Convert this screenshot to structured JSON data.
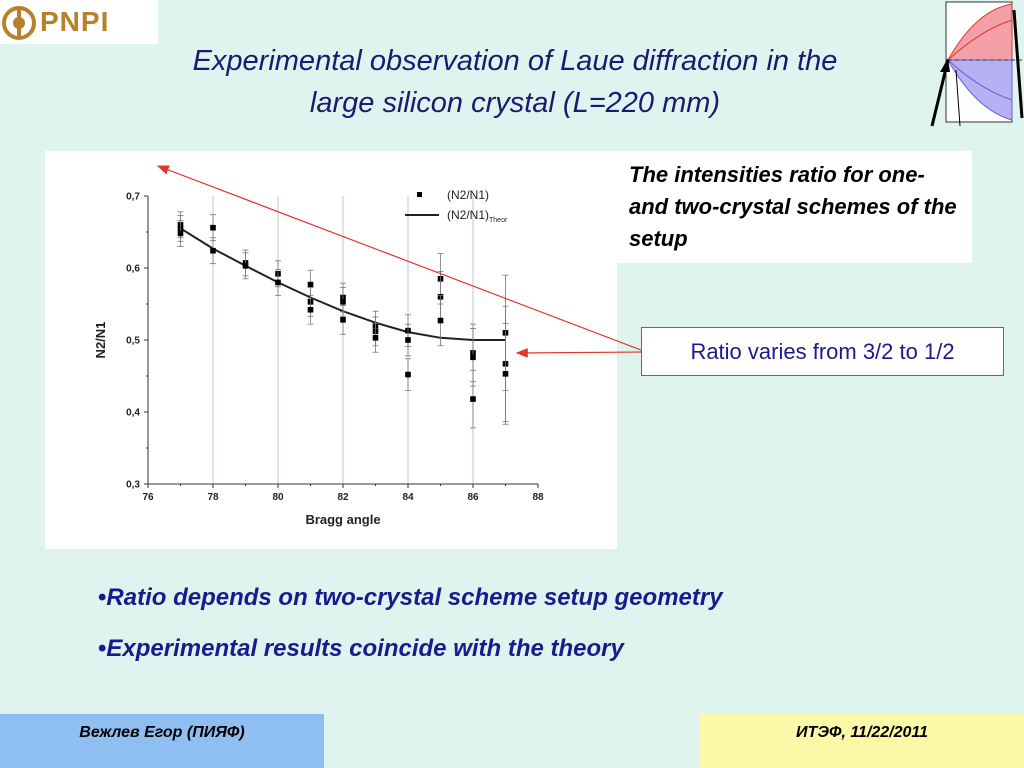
{
  "logo": {
    "text": "PNPI",
    "color": "#b7802a"
  },
  "title": {
    "line1": "Experimental observation of Laue diffraction in the",
    "line2": "large silicon crystal (L=220 mm)"
  },
  "caption": {
    "text": "The intensities ratio for one- and two-crystal schemes of the setup"
  },
  "ratio_box": {
    "text": "Ratio varies from 3/2 to 1/2"
  },
  "bullets": [
    "Ratio depends on two-crystal scheme setup geometry",
    "Experimental results coincide with the theory"
  ],
  "footer": {
    "left": "Вежлев Егор (ПИЯФ)",
    "right": "ИТЭФ, 11/22/2011"
  },
  "colors": {
    "background": "#dff4ee",
    "title_text": "#1a1a70",
    "accent_red": "#e0362b",
    "bullet_text": "#1a1a8c",
    "footer_left": "#8fbff1",
    "footer_right": "#fbf8a8"
  },
  "chart_data": {
    "type": "scatter",
    "title": "",
    "xlabel": "Bragg angle",
    "ylabel": "N2/N1",
    "xlim": [
      76,
      88
    ],
    "ylim": [
      0.3,
      0.7
    ],
    "x_ticks": [
      "76",
      "78",
      "80",
      "82",
      "84",
      "86",
      "88"
    ],
    "y_ticks": [
      "0,3",
      "0,4",
      "0,5",
      "0,6",
      "0,7"
    ],
    "vertical_gridlines_at": [
      78,
      80,
      82,
      84,
      86
    ],
    "legend": {
      "position": "top-right",
      "entries": [
        {
          "label": "(N2/N1)",
          "subscript": "",
          "marker": "square"
        },
        {
          "label": "(N2/N1)",
          "subscript": "Theor",
          "marker": "line"
        }
      ]
    },
    "series": [
      {
        "name": "(N2/N1)",
        "kind": "points",
        "points": [
          {
            "x": 77,
            "y": 0.66,
            "err": 0.018
          },
          {
            "x": 77,
            "y": 0.655,
            "err": 0.018
          },
          {
            "x": 77,
            "y": 0.648,
            "err": 0.018
          },
          {
            "x": 78,
            "y": 0.656,
            "err": 0.018
          },
          {
            "x": 78,
            "y": 0.624,
            "err": 0.018
          },
          {
            "x": 79,
            "y": 0.607,
            "err": 0.018
          },
          {
            "x": 79,
            "y": 0.603,
            "err": 0.018
          },
          {
            "x": 80,
            "y": 0.592,
            "err": 0.018
          },
          {
            "x": 80,
            "y": 0.58,
            "err": 0.018
          },
          {
            "x": 81,
            "y": 0.577,
            "err": 0.02
          },
          {
            "x": 81,
            "y": 0.553,
            "err": 0.02
          },
          {
            "x": 81,
            "y": 0.542,
            "err": 0.02
          },
          {
            "x": 82,
            "y": 0.559,
            "err": 0.02
          },
          {
            "x": 82,
            "y": 0.553,
            "err": 0.02
          },
          {
            "x": 82,
            "y": 0.528,
            "err": 0.02
          },
          {
            "x": 83,
            "y": 0.52,
            "err": 0.02
          },
          {
            "x": 83,
            "y": 0.512,
            "err": 0.02
          },
          {
            "x": 83,
            "y": 0.503,
            "err": 0.02
          },
          {
            "x": 84,
            "y": 0.513,
            "err": 0.022
          },
          {
            "x": 84,
            "y": 0.5,
            "err": 0.022
          },
          {
            "x": 84,
            "y": 0.452,
            "err": 0.022
          },
          {
            "x": 85,
            "y": 0.585,
            "err": 0.035
          },
          {
            "x": 85,
            "y": 0.56,
            "err": 0.035
          },
          {
            "x": 85,
            "y": 0.527,
            "err": 0.035
          },
          {
            "x": 86,
            "y": 0.482,
            "err": 0.04
          },
          {
            "x": 86,
            "y": 0.476,
            "err": 0.04
          },
          {
            "x": 86,
            "y": 0.418,
            "err": 0.04
          },
          {
            "x": 87,
            "y": 0.51,
            "err": 0.08
          },
          {
            "x": 87,
            "y": 0.467,
            "err": 0.08
          },
          {
            "x": 87,
            "y": 0.453,
            "err": 0.07
          }
        ]
      },
      {
        "name": "(N2/N1)Theor",
        "kind": "line",
        "x": [
          77,
          78,
          79,
          80,
          81,
          82,
          83,
          84,
          85,
          86,
          87
        ],
        "y": [
          0.655,
          0.627,
          0.603,
          0.58,
          0.559,
          0.54,
          0.524,
          0.511,
          0.503,
          0.5,
          0.5
        ]
      }
    ]
  }
}
